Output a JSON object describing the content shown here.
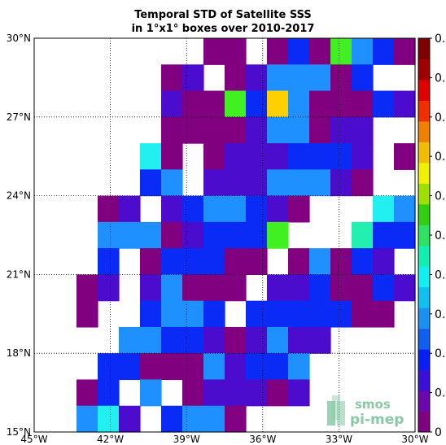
{
  "chart_data": {
    "type": "heatmap",
    "title_lines": [
      "Temporal STD of Satellite SSS",
      "in 1°x1° boxes over 2010-2017"
    ],
    "x_range": [
      -45,
      -30
    ],
    "y_range": [
      15,
      30
    ],
    "x_ticks": [
      {
        "value": -45,
        "label": "45°W"
      },
      {
        "value": -42,
        "label": "42°W"
      },
      {
        "value": -39,
        "label": "39°W"
      },
      {
        "value": -36,
        "label": "36°W"
      },
      {
        "value": -33,
        "label": "33°W"
      },
      {
        "value": -30,
        "label": "30°W"
      }
    ],
    "y_ticks": [
      {
        "value": 15,
        "label": "15°N"
      },
      {
        "value": 18,
        "label": "18°N"
      },
      {
        "value": 21,
        "label": "21°N"
      },
      {
        "value": 24,
        "label": "24°N"
      },
      {
        "value": 27,
        "label": "27°N"
      },
      {
        "value": 30,
        "label": "30°N"
      }
    ],
    "grid": "dotted",
    "colorbar": {
      "position": "right",
      "colors": [
        "#800080",
        "#6a08ad",
        "#3b10d8",
        "#0a1ff5",
        "#1060f0",
        "#1a90f0",
        "#10c0f0",
        "#10f0f0",
        "#10f0b0",
        "#30e060",
        "#30d010",
        "#a0e000",
        "#f0f000",
        "#f0c000",
        "#f08000",
        "#f03000",
        "#e00000",
        "#a00000",
        "#800000"
      ],
      "tick_labels": [
        "0",
        "0.",
        "0.",
        "0.",
        "0.",
        "0.",
        "0.",
        "0.",
        "0.",
        "0.",
        "0."
      ]
    },
    "cell_rows": [
      "--------PP-PBPGCBP",
      "------PN-PNCCCPB",
      "------NPPGBYCPPPBN",
      "------PPPPNCCPNN-",
      "-----AP-PNNNBBBN-P",
      "-----BC-NNNCCCNP--C",
      "---PN-NBCCBNP---ACC",
      "---CCCPNBBBG---TBBB",
      "---B-PBBBPP-PCPBN",
      "--PN-NCPPP-NNBPPBN",
      "--P--BCCB-BBBBBPP",
      "----CCBBNPNCNN",
      "---BBPPPCNBBC",
      "--PB-C-PNNNPN",
      "--CAN-BCCP"
    ],
    "logo": {
      "line1": "smos",
      "line2": "pi-mep"
    }
  }
}
